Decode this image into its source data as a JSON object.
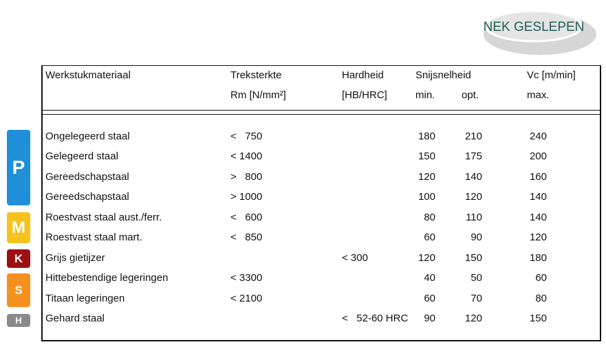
{
  "badge": "NEK GESLEPEN",
  "table": {
    "header": [
      [
        "Werkstukmateriaal",
        "Treksterkte",
        "Hardheid",
        "Snijsnelheid",
        "Vc [m/min]"
      ],
      [
        "Rm [N/mm²]",
        "[HB/HRC]",
        "min.",
        "opt.",
        "max."
      ]
    ],
    "rows": [
      {
        "material": "Ongelegeerd staal",
        "strength": "<   750",
        "min": 180,
        "opt": 210,
        "max": 240
      },
      {
        "material": "Gelegeerd staal",
        "strength": "< 1400",
        "min": 150,
        "opt": 175,
        "max": 200
      },
      {
        "material": "Gereedschapstaal",
        "strength": ">   800",
        "min": 120,
        "opt": 140,
        "max": 160
      },
      {
        "material": "Gereedschapstaal",
        "strength": "> 1000",
        "min": 100,
        "opt": 120,
        "max": 140
      },
      {
        "material": "Roestvast staal aust./ferr.",
        "strength": "<   600",
        "min": 80,
        "opt": 110,
        "max": 140
      },
      {
        "material": "Roestvast staal mart.",
        "strength": "<   850",
        "min": 60,
        "opt": 90,
        "max": 120
      },
      {
        "material": "Grijs gietijzer",
        "hardness": "< 300",
        "min": 120,
        "opt": 150,
        "max": 180
      },
      {
        "material": "Hittebestendige legeringen",
        "strength": "< 3300",
        "min": 40,
        "opt": 50,
        "max": 60
      },
      {
        "material": "Titaan legeringen",
        "strength": "< 2100",
        "min": 60,
        "opt": 70,
        "max": 80
      },
      {
        "material": "Gehard staal",
        "hardness": "<   52-60 HRC",
        "min": 90,
        "opt": 120,
        "max": 150
      }
    ]
  },
  "groups": [
    "P",
    "M",
    "K",
    "S",
    "H"
  ]
}
